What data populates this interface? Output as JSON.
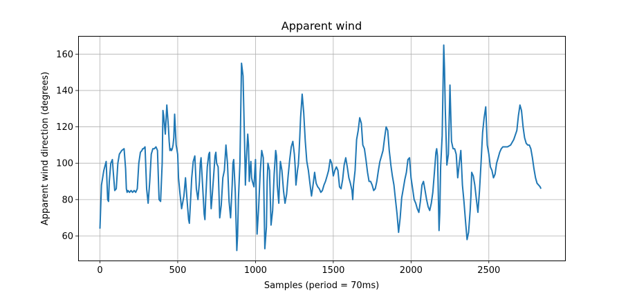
{
  "chart_data": {
    "type": "line",
    "title": "Apparent wind",
    "xlabel": "Samples (period = 70ms)",
    "ylabel": "Apparent wind direction (degrees)",
    "xlim": [
      -140,
      2990
    ],
    "ylim": [
      46.5,
      170
    ],
    "xticks": [
      0,
      500,
      1000,
      1500,
      2000,
      2500
    ],
    "yticks": [
      60,
      80,
      100,
      120,
      140,
      160
    ],
    "grid": true,
    "line_color": "#1f77b4",
    "series": [
      {
        "x": [
          0,
          10,
          25,
          40,
          50,
          55,
          60,
          70,
          80,
          85,
          95,
          105,
          115,
          125,
          140,
          155,
          165,
          170,
          175,
          180,
          190,
          200,
          210,
          220,
          230,
          240,
          250,
          260,
          270,
          275,
          280,
          290,
          300,
          310,
          320,
          330,
          340,
          350,
          360,
          370,
          380,
          390,
          400,
          405,
          410,
          420,
          430,
          440,
          445,
          450,
          455,
          460,
          465,
          470,
          475,
          480,
          490,
          500,
          505,
          515,
          525,
          540,
          550,
          560,
          570,
          575,
          580,
          590,
          600,
          610,
          620,
          630,
          640,
          645,
          650,
          660,
          670,
          675,
          680,
          690,
          700,
          705,
          710,
          715,
          720,
          730,
          740,
          745,
          750,
          760,
          770,
          780,
          790,
          800,
          810,
          820,
          830,
          840,
          850,
          855,
          860,
          870,
          880,
          885,
          890,
          900,
          910,
          920,
          930,
          935,
          940,
          950,
          955,
          960,
          965,
          970,
          975,
          980,
          990,
          1000,
          1005,
          1010,
          1020,
          1030,
          1040,
          1050,
          1060,
          1070,
          1075,
          1080,
          1090,
          1100,
          1110,
          1120,
          1130,
          1135,
          1140,
          1150,
          1155,
          1160,
          1170,
          1180,
          1190,
          1200,
          1210,
          1220,
          1230,
          1240,
          1250,
          1255,
          1260,
          1270,
          1275,
          1280,
          1285,
          1290,
          1300,
          1310,
          1320,
          1330,
          1340,
          1350,
          1360,
          1370,
          1380,
          1390,
          1400,
          1410,
          1420,
          1430,
          1440,
          1450,
          1460,
          1470,
          1480,
          1490,
          1500,
          1510,
          1520,
          1530,
          1540,
          1550,
          1560,
          1570,
          1580,
          1590,
          1600,
          1610,
          1620,
          1625,
          1630,
          1640,
          1650,
          1660,
          1670,
          1680,
          1690,
          1700,
          1710,
          1720,
          1730,
          1740,
          1750,
          1760,
          1770,
          1780,
          1790,
          1800,
          1810,
          1820,
          1830,
          1840,
          1850,
          1860,
          1865,
          1870,
          1880,
          1890,
          1900,
          1910,
          1920,
          1930,
          1940,
          1950,
          1960,
          1970,
          1980,
          1990,
          2000,
          2010,
          2020,
          2030,
          2040,
          2050,
          2060,
          2070,
          2080,
          2090,
          2100,
          2110,
          2120,
          2130,
          2140,
          2150,
          2160,
          2165,
          2170,
          2180,
          2185,
          2190,
          2200,
          2210,
          2215,
          2220,
          2230,
          2240,
          2250,
          2260,
          2270,
          2280,
          2290,
          2300,
          2310,
          2320,
          2330,
          2340,
          2350,
          2360,
          2370,
          2380,
          2385,
          2390,
          2400,
          2410,
          2420,
          2430,
          2440,
          2450,
          2460,
          2470,
          2480,
          2490,
          2500,
          2510,
          2520,
          2530,
          2540,
          2550,
          2560,
          2570,
          2580,
          2590,
          2600,
          2620,
          2640,
          2660,
          2680,
          2690,
          2700,
          2710,
          2720,
          2730,
          2740,
          2750,
          2760,
          2770,
          2780,
          2790,
          2800,
          2810,
          2820,
          2830,
          2835
        ],
        "y": [
          64,
          88,
          96,
          101,
          80,
          79,
          90,
          100,
          102,
          96,
          85,
          86,
          100,
          105,
          107,
          108,
          97,
          86,
          84,
          85,
          84,
          85,
          84,
          85,
          84,
          86,
          100,
          106,
          107,
          108,
          108,
          109,
          86,
          78,
          90,
          105,
          108,
          108,
          109,
          107,
          80,
          79,
          100,
          129,
          126,
          116,
          132,
          120,
          112,
          107,
          108,
          107,
          108,
          110,
          114,
          127,
          110,
          105,
          92,
          83,
          75,
          82,
          92,
          80,
          69,
          67,
          75,
          92,
          101,
          104,
          86,
          80,
          90,
          100,
          103,
          88,
          72,
          69,
          80,
          98,
          105,
          106,
          86,
          75,
          80,
          92,
          104,
          106,
          100,
          98,
          70,
          77,
          92,
          96,
          110,
          100,
          79,
          70,
          88,
          100,
          102,
          84,
          52,
          60,
          80,
          100,
          155,
          148,
          110,
          88,
          100,
          116,
          110,
          90,
          96,
          101,
          92,
          90,
          87,
          102,
          82,
          61,
          75,
          95,
          107,
          103,
          53,
          65,
          90,
          100,
          96,
          66,
          74,
          94,
          107,
          104,
          88,
          78,
          92,
          101,
          96,
          85,
          78,
          83,
          93,
          102,
          109,
          112,
          105,
          98,
          88,
          96,
          99,
          106,
          115,
          125,
          138,
          128,
          112,
          101,
          96,
          89,
          82,
          88,
          95,
          89,
          87,
          86,
          84,
          85,
          88,
          90,
          93,
          96,
          102,
          100,
          93,
          96,
          98,
          96,
          87,
          86,
          91,
          99,
          103,
          98,
          92,
          89,
          85,
          80,
          88,
          96,
          113,
          118,
          125,
          122,
          110,
          108,
          102,
          95,
          90,
          90,
          88,
          85,
          86,
          90,
          96,
          101,
          104,
          107,
          114,
          120,
          118,
          107,
          103,
          99,
          93,
          88,
          80,
          72,
          62,
          70,
          81,
          86,
          91,
          95,
          102,
          103,
          92,
          86,
          80,
          78,
          75,
          73,
          79,
          88,
          90,
          85,
          80,
          76,
          74,
          78,
          84,
          95,
          106,
          108,
          104,
          63,
          73,
          98,
          115,
          165,
          152,
          130,
          99,
          105,
          143,
          112,
          108,
          108,
          105,
          92,
          100,
          107,
          88,
          79,
          68,
          58,
          62,
          74,
          82,
          95,
          93,
          88,
          80,
          73,
          85,
          100,
          117,
          125,
          131,
          110,
          105,
          98,
          96,
          92,
          94,
          100,
          103,
          106,
          108,
          109,
          109,
          109,
          110,
          113,
          118,
          126,
          132,
          129,
          120,
          114,
          111,
          110,
          110,
          108,
          103,
          97,
          92,
          89,
          88,
          87,
          86
        ]
      }
    ]
  }
}
